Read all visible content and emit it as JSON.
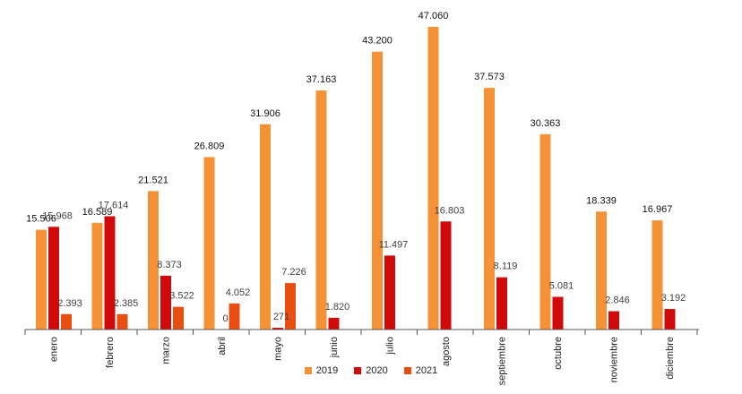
{
  "chart_data": {
    "type": "bar",
    "title": "",
    "xlabel": "",
    "ylabel": "",
    "ylim": [
      0,
      48000
    ],
    "grid": false,
    "legend_position": "bottom",
    "categories": [
      "enero",
      "febrero",
      "marzo",
      "abril",
      "mayo",
      "junio",
      "julio",
      "agosto",
      "septiembre",
      "octubre",
      "noviembre",
      "diciembre"
    ],
    "series": [
      {
        "name": "2019",
        "color": "#F59137",
        "values": [
          15506,
          16589,
          21521,
          26809,
          31906,
          37163,
          43200,
          47060,
          37573,
          30363,
          18339,
          16967
        ],
        "labels": [
          "15.506",
          "16.589",
          "21.521",
          "26.809",
          "31.906",
          "37.163",
          "43.200",
          "47.060",
          "37.573",
          "30.363",
          "18.339",
          "16.967"
        ]
      },
      {
        "name": "2020",
        "color": "#D00A0A",
        "values": [
          15968,
          17614,
          8373,
          0,
          271,
          1820,
          11497,
          16803,
          8119,
          5081,
          2846,
          3192
        ],
        "labels": [
          "15.968",
          "17.614",
          "8.373",
          "0",
          "271",
          "1.820",
          "11.497",
          "16.803",
          "8.119",
          "5.081",
          "2.846",
          "3.192"
        ]
      },
      {
        "name": "2021",
        "color": "#E84E10",
        "values": [
          2393,
          2385,
          3522,
          4052,
          7226,
          null,
          null,
          null,
          null,
          null,
          null,
          null
        ],
        "labels": [
          "2.393",
          "2.385",
          "3.522",
          "4.052",
          "7.226",
          "",
          "",
          "",
          "",
          "",
          "",
          ""
        ]
      }
    ]
  }
}
